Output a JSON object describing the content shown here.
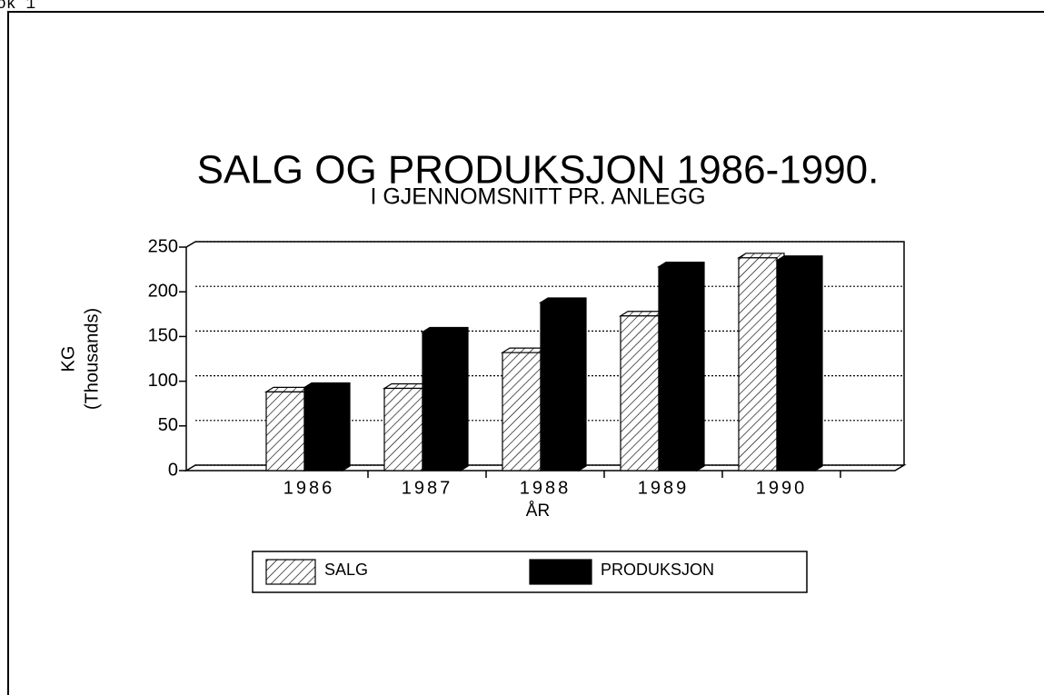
{
  "page_label": "ok 1",
  "chart_data": {
    "type": "bar",
    "title": "SALG OG PRODUKSJON 1986-1990.",
    "subtitle": "I GJENNOMSNITT PR. ANLEGG",
    "y_label": [
      "KG",
      "(Thousands)"
    ],
    "x_label": "ÅR",
    "categories": [
      "1986",
      "1987",
      "1988",
      "1989",
      "1990"
    ],
    "series": [
      {
        "name": "SALG",
        "color": "#000000",
        "hatch": true,
        "values": [
          88,
          92,
          132,
          173,
          238
        ]
      },
      {
        "name": "PRODUKSJON",
        "color": "#000000",
        "hatch": false,
        "values": [
          93,
          155,
          188,
          228,
          235
        ]
      }
    ],
    "ylim": [
      0,
      250
    ],
    "yticks": [
      0,
      50,
      100,
      150,
      200,
      250
    ],
    "grid": true
  }
}
